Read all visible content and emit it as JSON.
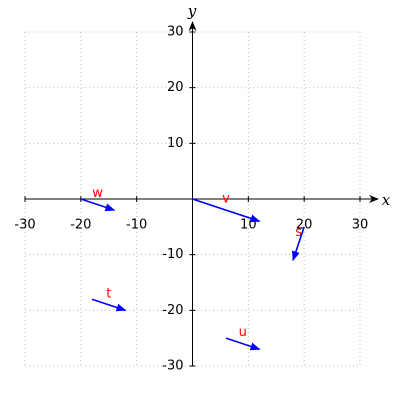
{
  "chart_data": {
    "type": "vector",
    "x_label": "x",
    "y_label": "y",
    "xlim": [
      -30,
      30
    ],
    "ylim": [
      -30,
      30
    ],
    "xticks": [
      -30,
      -20,
      -10,
      10,
      20,
      30
    ],
    "yticks": [
      -30,
      -20,
      -10,
      10,
      20,
      30
    ],
    "grid": true,
    "color": "blue",
    "label_color": "red",
    "vectors": [
      {
        "name": "v",
        "start": [
          0,
          0
        ],
        "end": [
          12,
          -4
        ]
      },
      {
        "name": "w",
        "start": [
          -20,
          0
        ],
        "end": [
          -14,
          -2
        ]
      },
      {
        "name": "s",
        "start": [
          20,
          -5
        ],
        "end": [
          18,
          -11
        ]
      },
      {
        "name": "t",
        "start": [
          -18,
          -18
        ],
        "end": [
          -12,
          -20
        ]
      },
      {
        "name": "u",
        "start": [
          6,
          -25
        ],
        "end": [
          12,
          -27
        ]
      }
    ]
  }
}
